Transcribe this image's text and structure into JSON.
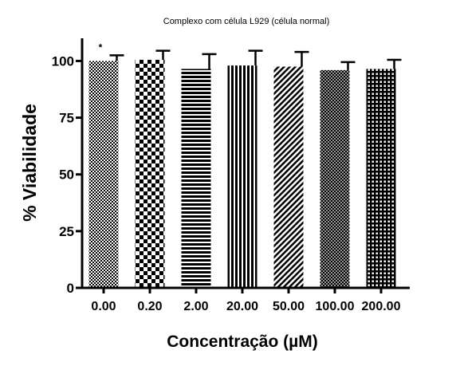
{
  "chart_data": {
    "type": "bar",
    "title": "Complexo com célula L929 (célula normal)",
    "xlabel": "Concentração (µM)",
    "ylabel": "% Viabilidade",
    "categories": [
      "0.00",
      "0.20",
      "2.00",
      "20.00",
      "50.00",
      "100.00",
      "200.00"
    ],
    "series": [
      {
        "values": [
          100,
          100.5,
          96.5,
          98,
          97.5,
          96,
          96.5
        ],
        "errors": [
          2.5,
          4,
          6.5,
          6.5,
          6.5,
          3.5,
          4
        ]
      }
    ],
    "ylim": [
      0,
      110
    ],
    "yticks": [
      "0",
      "25",
      "50",
      "75",
      "100"
    ],
    "annotations": [
      {
        "category": "0.00",
        "text": "*"
      }
    ],
    "fill_patterns": [
      "fine-check",
      "checker",
      "horizontal-lines",
      "vertical-lines",
      "diagonal-lines",
      "crosshatch",
      "grid"
    ],
    "grid": false,
    "legend": "none",
    "colors": {
      "bar_fill": "#000000",
      "background": "#ffffff"
    }
  }
}
